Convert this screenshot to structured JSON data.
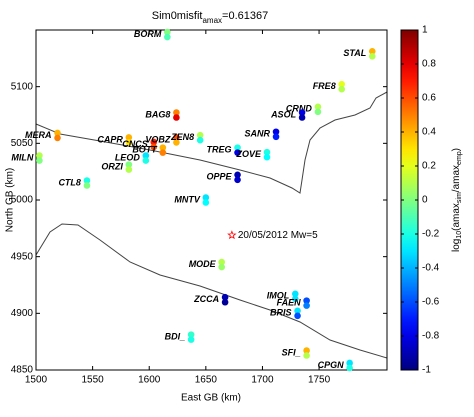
{
  "chart_data": {
    "type": "scatter",
    "title_parts": [
      "Sim0misfit",
      "amax",
      "=0.61367"
    ],
    "x_label": "East GB (km)",
    "y_label": "North GB (km)",
    "xlim": [
      1500,
      1810
    ],
    "ylim": [
      4850,
      5150
    ],
    "xticks": [
      1500,
      1550,
      1600,
      1650,
      1700,
      1750
    ],
    "yticks": [
      4850,
      4900,
      4950,
      5000,
      5050,
      5100
    ],
    "colormap": "jet",
    "clim": [
      -1,
      1
    ],
    "cticks": [
      -1,
      -0.8,
      -0.6,
      -0.4,
      -0.2,
      0,
      0.2,
      0.4,
      0.6,
      0.8,
      1
    ],
    "colorbar_label_parts": [
      "log",
      "10",
      "(amax",
      "sim",
      "/amax",
      "emp",
      ")"
    ],
    "stations": [
      {
        "name": "BORM",
        "x": 1616,
        "y": 5146,
        "values": [
          0.0,
          -0.1
        ]
      },
      {
        "name": "STAL",
        "x": 1797,
        "y": 5129,
        "values": [
          0.4,
          0.1
        ]
      },
      {
        "name": "FRE8",
        "x": 1770,
        "y": 5100,
        "values": [
          0.2,
          0.1
        ]
      },
      {
        "name": "CRND",
        "x": 1749,
        "y": 5080,
        "values": [
          0.1,
          0.0
        ]
      },
      {
        "name": "ASOL",
        "x": 1735,
        "y": 5075,
        "values": [
          -0.8,
          -0.9
        ]
      },
      {
        "name": "BAG8",
        "x": 1624,
        "y": 5075,
        "values": [
          0.5,
          0.8
        ]
      },
      {
        "name": "MERA",
        "x": 1519,
        "y": 5057,
        "values": [
          0.4,
          0.5
        ]
      },
      {
        "name": "CAPR",
        "x": 1582,
        "y": 5053,
        "values": [
          0.4,
          0.3
        ]
      },
      {
        "name": "CNCS",
        "x": 1604,
        "y": 5049,
        "values": [
          0.7,
          0.6
        ]
      },
      {
        "name": "VOBZ",
        "x": 1624,
        "y": 5053,
        "values": [
          0.6,
          0.4
        ]
      },
      {
        "name": "BOTT",
        "x": 1612,
        "y": 5044,
        "values": [
          0.4,
          0.5
        ]
      },
      {
        "name": "ZEN8",
        "x": 1645,
        "y": 5055,
        "values": [
          0.1,
          -0.2
        ]
      },
      {
        "name": "SANR",
        "x": 1712,
        "y": 5058,
        "values": [
          -0.8,
          -0.7
        ]
      },
      {
        "name": "TREG",
        "x": 1678,
        "y": 5044,
        "values": [
          -0.2,
          -0.8
        ]
      },
      {
        "name": "ZOVE",
        "x": 1704,
        "y": 5040,
        "values": [
          -0.2,
          -0.25
        ]
      },
      {
        "name": "MILN",
        "x": 1503,
        "y": 5037,
        "values": [
          0.1,
          0.0
        ]
      },
      {
        "name": "LEOD",
        "x": 1597,
        "y": 5037,
        "values": [
          -0.3,
          -0.2
        ]
      },
      {
        "name": "ORZI",
        "x": 1582,
        "y": 5029,
        "values": [
          0.0,
          0.1
        ]
      },
      {
        "name": "CTL8",
        "x": 1545,
        "y": 5015,
        "values": [
          -0.2,
          0.0
        ]
      },
      {
        "name": "OPPE",
        "x": 1678,
        "y": 5020,
        "values": [
          -0.9,
          -0.85
        ]
      },
      {
        "name": "MNTV",
        "x": 1650,
        "y": 5000,
        "values": [
          -0.3,
          -0.25
        ]
      },
      {
        "name": "MODE",
        "x": 1664,
        "y": 4943,
        "values": [
          0.1,
          0.05
        ]
      },
      {
        "name": "ZCCA",
        "x": 1667,
        "y": 4912,
        "values": [
          -0.9,
          -0.95
        ]
      },
      {
        "name": "IMOL",
        "x": 1729,
        "y": 4915,
        "values": [
          -0.3,
          -0.3
        ]
      },
      {
        "name": "FAEN",
        "x": 1739,
        "y": 4909,
        "values": [
          -0.6,
          -0.5
        ]
      },
      {
        "name": "BRIS",
        "x": 1731,
        "y": 4900,
        "values": [
          -0.3,
          -0.6
        ]
      },
      {
        "name": "BDI_",
        "x": 1637,
        "y": 4879,
        "values": [
          -0.15,
          -0.2
        ]
      },
      {
        "name": "SFI_",
        "x": 1739,
        "y": 4865,
        "values": [
          0.4,
          0.1
        ]
      },
      {
        "name": "CPGN",
        "x": 1777,
        "y": 4854,
        "values": [
          -0.3,
          -0.2
        ]
      }
    ],
    "epicenter": {
      "x": 1673,
      "y": 4969,
      "label": "20/05/2012 Mw=5",
      "color": "#ff0000"
    }
  }
}
